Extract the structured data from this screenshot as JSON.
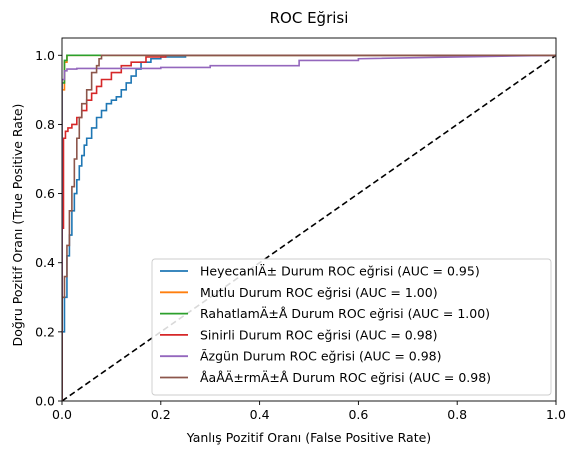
{
  "chart_data": {
    "type": "line",
    "title": "ROC Eğrisi",
    "xlabel": "Yanlış Pozitif Oranı (False Positive Rate)",
    "ylabel": "Doğru Pozitif Oranı (True Positive Rate)",
    "xlim": [
      0.0,
      1.0
    ],
    "ylim": [
      0.0,
      1.05
    ],
    "xticks": [
      "0.0",
      "0.2",
      "0.4",
      "0.6",
      "0.8",
      "1.0"
    ],
    "yticks": [
      "0.0",
      "0.2",
      "0.4",
      "0.6",
      "0.8",
      "1.0"
    ],
    "grid": false,
    "legend_position": "lower-right",
    "diagonal": {
      "x": [
        0,
        1
      ],
      "y": [
        0,
        1
      ],
      "color": "#000000",
      "style": "dashed"
    },
    "series": [
      {
        "name": "HeyecanlÄ± Durum ROC eğrisi (AUC = 0.95)",
        "color": "#1f77b4",
        "x": [
          0,
          0,
          0.005,
          0.005,
          0.01,
          0.01,
          0.015,
          0.015,
          0.02,
          0.02,
          0.025,
          0.025,
          0.03,
          0.03,
          0.035,
          0.035,
          0.04,
          0.04,
          0.045,
          0.045,
          0.05,
          0.05,
          0.06,
          0.06,
          0.07,
          0.07,
          0.08,
          0.08,
          0.09,
          0.09,
          0.1,
          0.1,
          0.11,
          0.11,
          0.12,
          0.12,
          0.13,
          0.13,
          0.14,
          0.14,
          0.15,
          0.15,
          0.16,
          0.16,
          0.18,
          0.18,
          0.2,
          0.2,
          0.25,
          0.25,
          0.3,
          0.3,
          1.0
        ],
        "y": [
          0,
          0.2,
          0.2,
          0.3,
          0.3,
          0.42,
          0.42,
          0.48,
          0.48,
          0.55,
          0.55,
          0.6,
          0.6,
          0.64,
          0.64,
          0.68,
          0.68,
          0.71,
          0.71,
          0.74,
          0.74,
          0.76,
          0.76,
          0.79,
          0.79,
          0.82,
          0.82,
          0.84,
          0.84,
          0.86,
          0.86,
          0.87,
          0.87,
          0.88,
          0.88,
          0.9,
          0.9,
          0.92,
          0.92,
          0.94,
          0.94,
          0.96,
          0.96,
          0.98,
          0.98,
          0.99,
          0.99,
          0.995,
          0.995,
          1.0,
          1.0,
          1.0,
          1.0
        ]
      },
      {
        "name": "Mutlu Durum ROC eğrisi (AUC = 1.00)",
        "color": "#ff7f0e",
        "x": [
          0,
          0,
          0.005,
          0.005,
          0.01,
          0.01,
          1.0
        ],
        "y": [
          0,
          0.9,
          0.9,
          0.98,
          0.98,
          1.0,
          1.0
        ]
      },
      {
        "name": "RahatlamÄ±Å Durum ROC eğrisi (AUC = 1.00)",
        "color": "#2ca02c",
        "x": [
          0,
          0,
          0.005,
          0.005,
          0.01,
          0.01,
          0.085,
          0.085,
          1.0
        ],
        "y": [
          0,
          0.92,
          0.92,
          0.985,
          0.985,
          1.0,
          1.0,
          1.0,
          1.0
        ]
      },
      {
        "name": "Sinirli Durum ROC eğrisi (AUC = 0.98)",
        "color": "#d62728",
        "x": [
          0,
          0,
          0.003,
          0.003,
          0.007,
          0.007,
          0.012,
          0.012,
          0.02,
          0.02,
          0.03,
          0.03,
          0.04,
          0.04,
          0.05,
          0.05,
          0.06,
          0.06,
          0.07,
          0.07,
          0.08,
          0.08,
          0.1,
          0.1,
          0.12,
          0.12,
          0.14,
          0.14,
          0.17,
          0.17,
          0.21,
          0.21,
          1.0
        ],
        "y": [
          0,
          0.5,
          0.5,
          0.76,
          0.76,
          0.78,
          0.78,
          0.79,
          0.79,
          0.8,
          0.8,
          0.82,
          0.82,
          0.84,
          0.84,
          0.87,
          0.87,
          0.89,
          0.89,
          0.91,
          0.91,
          0.93,
          0.93,
          0.95,
          0.95,
          0.97,
          0.97,
          0.98,
          0.98,
          0.995,
          0.995,
          1.0,
          1.0
        ]
      },
      {
        "name": "Ãzgün Durum ROC eğrisi (AUC = 0.98)",
        "color": "#9467bd",
        "x": [
          0,
          0,
          0.005,
          0.005,
          0.01,
          0.01,
          0.03,
          0.03,
          0.2,
          0.2,
          0.3,
          0.3,
          0.48,
          0.48,
          0.6,
          0.6,
          1.0
        ],
        "y": [
          0,
          0.93,
          0.93,
          0.955,
          0.955,
          0.96,
          0.96,
          0.962,
          0.962,
          0.965,
          0.965,
          0.97,
          0.97,
          0.985,
          0.985,
          0.99,
          1.0
        ]
      },
      {
        "name": "ÅaÅÄ±rmÄ±Å Durum ROC eğrisi (AUC = 0.98)",
        "color": "#8c564b",
        "x": [
          0,
          0,
          0.005,
          0.005,
          0.01,
          0.01,
          0.015,
          0.015,
          0.02,
          0.02,
          0.025,
          0.025,
          0.03,
          0.03,
          0.035,
          0.035,
          0.04,
          0.04,
          0.05,
          0.05,
          0.06,
          0.06,
          0.07,
          0.07,
          0.075,
          0.075,
          0.08,
          0.08,
          1.0
        ],
        "y": [
          0,
          0.3,
          0.3,
          0.36,
          0.36,
          0.45,
          0.45,
          0.55,
          0.55,
          0.62,
          0.62,
          0.7,
          0.7,
          0.76,
          0.76,
          0.82,
          0.82,
          0.86,
          0.86,
          0.9,
          0.9,
          0.95,
          0.95,
          0.97,
          0.97,
          0.99,
          0.99,
          1.0,
          1.0
        ]
      }
    ]
  }
}
